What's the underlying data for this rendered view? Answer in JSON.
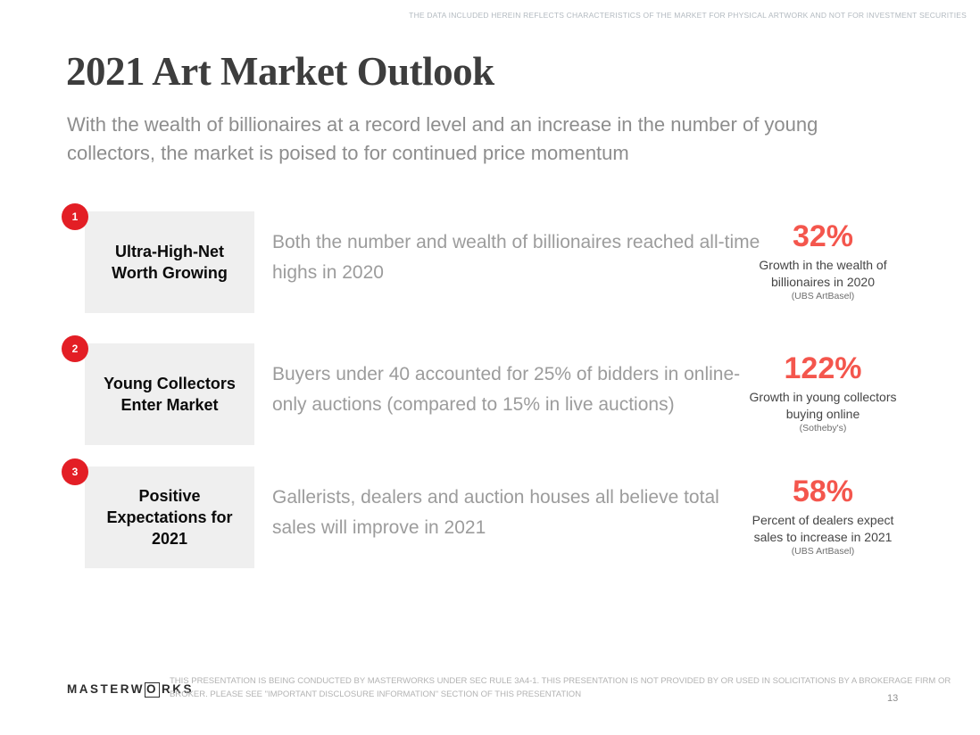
{
  "page": {
    "top_disclaimer": "THE DATA INCLUDED HEREIN REFLECTS CHARACTERISTICS OF THE MARKET FOR PHYSICAL ARTWORK AND NOT FOR INVESTMENT SECURITIES",
    "title": "2021 Art Market Outlook",
    "subtitle": "With the wealth of billionaires at a record level and an increase in the number of young collectors, the market is poised to for continued price momentum",
    "page_number": "13"
  },
  "rows": [
    {
      "badge": "1",
      "label": "Ultra-High-Net Worth Growing",
      "description": "Both the number and wealth of billionaires reached all-time highs in 2020",
      "stat_value": "32%",
      "stat_caption": "Growth in the wealth of billionaires in 2020",
      "stat_source": "(UBS ArtBasel)"
    },
    {
      "badge": "2",
      "label": "Young Collectors Enter Market",
      "description": "Buyers under 40 accounted for 25% of bidders in online-only auctions (compared to 15% in live auctions)",
      "stat_value": "122%",
      "stat_caption": "Growth in young collectors buying online",
      "stat_source": "(Sotheby's)"
    },
    {
      "badge": "3",
      "label": "Positive Expectations for 2021",
      "description": "Gallerists, dealers and auction houses all believe total sales will improve in 2021",
      "stat_value": "58%",
      "stat_caption": "Percent of dealers expect sales to increase in 2021",
      "stat_source": "(UBS ArtBasel)"
    }
  ],
  "footer": {
    "logo_prefix": "MASTERW",
    "logo_o": "O",
    "logo_suffix": "RKS",
    "disclaimer": "THIS PRESENTATION  IS BEING CONDUCTED BY MASTERWORKS UNDER SEC RULE 3A4-1. THIS PRESENTATION  IS NOT PROVIDED BY OR USED IN SOLICITATIONS BY A BROKERAGE FIRM OR BROKER. PLEASE SEE \"IMPORTANT DISCLOSURE INFORMATION\" SECTION OF THIS PRESENTATION"
  },
  "colors": {
    "badge_red": "#e31e25",
    "stat_red": "#f4564d",
    "title_charcoal": "#3d3d3d",
    "box_gray": "#efefef"
  }
}
